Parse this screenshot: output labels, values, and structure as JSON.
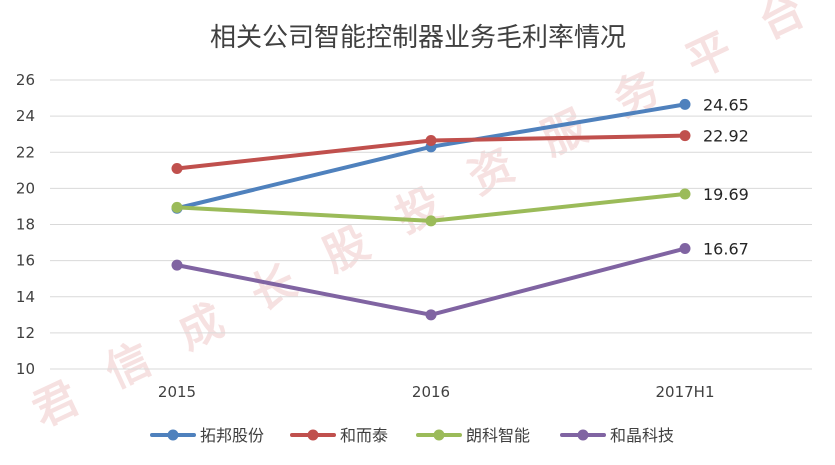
{
  "chart_data": {
    "type": "line",
    "title": "相关公司智能控制器业务毛利率情况",
    "xlabel": "",
    "ylabel": "",
    "categories": [
      "2015",
      "2016",
      "2017H1"
    ],
    "ylim": [
      10,
      26
    ],
    "yticks": [
      10,
      12,
      14,
      16,
      18,
      20,
      22,
      24,
      26
    ],
    "grid": true,
    "legend_position": "bottom",
    "series": [
      {
        "name": "拓邦股份",
        "color": "#4f81bd",
        "values": [
          18.9,
          22.3,
          24.65
        ],
        "end_label": "24.65"
      },
      {
        "name": "和而泰",
        "color": "#c0504d",
        "values": [
          21.1,
          22.65,
          22.92
        ],
        "end_label": "22.92"
      },
      {
        "name": "朗科智能",
        "color": "#9bbb59",
        "values": [
          18.95,
          18.2,
          19.69
        ],
        "end_label": "19.69"
      },
      {
        "name": "和晶科技",
        "color": "#8064a2",
        "values": [
          15.75,
          13.0,
          16.67
        ],
        "end_label": "16.67"
      }
    ]
  },
  "watermark": {
    "text": "君信成长股投资服务平台",
    "color": "#f0c9c9"
  }
}
